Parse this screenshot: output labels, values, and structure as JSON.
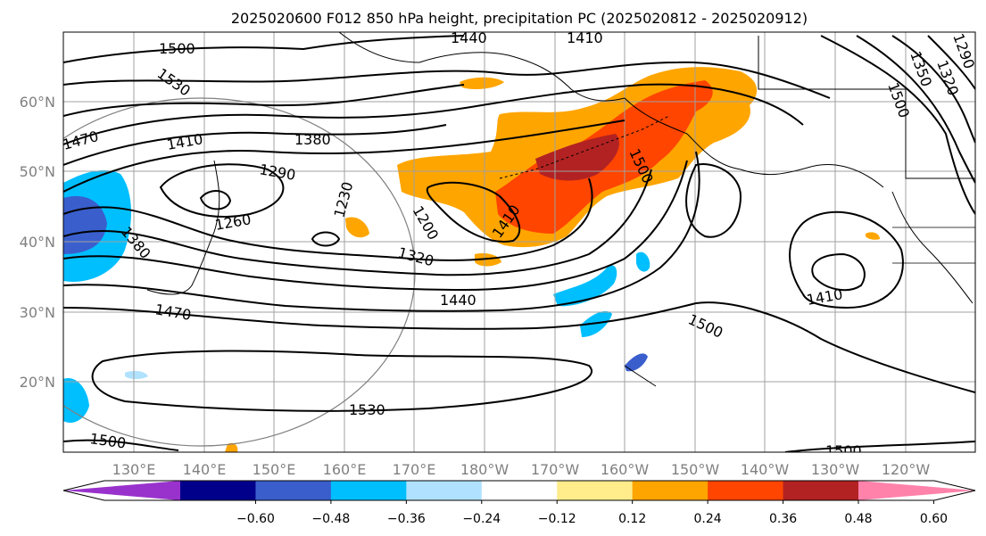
{
  "title": "2025020600 F012 850 hPa height, precipitation PC (2025020812 - 2025020912)",
  "map": {
    "lon_labels": [
      "130°E",
      "140°E",
      "150°E",
      "160°E",
      "170°E",
      "180°W",
      "170°W",
      "160°W",
      "150°W",
      "140°W",
      "130°W",
      "120°W"
    ],
    "lat_labels": [
      "60°N",
      "50°N",
      "40°N",
      "30°N",
      "20°N"
    ],
    "height_contour_labels": [
      "1500",
      "1530",
      "1470",
      "1410",
      "1380",
      "1290",
      "1260",
      "1230",
      "1200",
      "1320",
      "1440",
      "1470",
      "1530",
      "1500",
      "1380",
      "1500",
      "1410",
      "1500",
      "1410",
      "1350",
      "1320",
      "1290",
      "1440",
      "1410",
      "1500",
      "1500"
    ],
    "colors": {
      "contour": "#000000",
      "grid": "#a0a0a0",
      "coast": "#000000"
    }
  },
  "colorbar": {
    "tick_labels": [
      "−0.60",
      "−0.48",
      "−0.36",
      "−0.24",
      "−0.12",
      "0.12",
      "0.24",
      "0.36",
      "0.48",
      "0.60"
    ],
    "colors": [
      "#9932cc",
      "#00008b",
      "#3a5fcd",
      "#00bfff",
      "#b0e2ff",
      "#ffffff",
      "#ffec8b",
      "#ffa500",
      "#ff4500",
      "#b22222",
      "#ff82ab"
    ]
  }
}
